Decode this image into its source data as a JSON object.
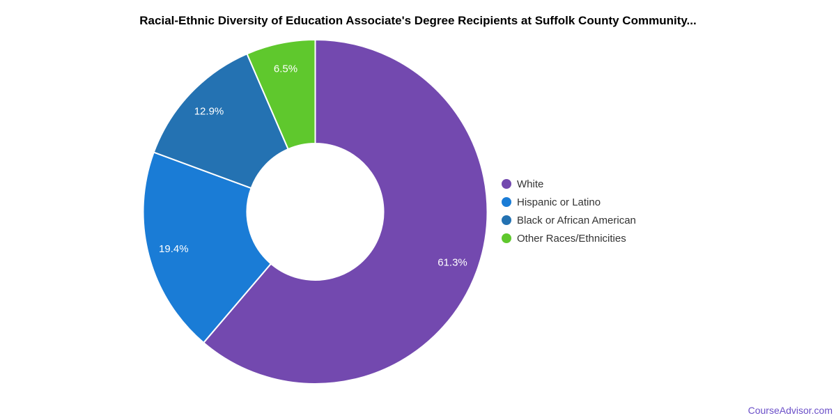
{
  "page": {
    "title": "Racial-Ethnic Diversity of Education Associate's Degree Recipients at Suffolk County Community...",
    "footer_link": "CourseAdvisor.com",
    "footer_link_color": "#6B4FC8",
    "background": "#ffffff"
  },
  "chart_data": {
    "type": "pie",
    "subtype": "donut",
    "title": "Racial-Ethnic Diversity of Education Associate's Degree Recipients at Suffolk County Community...",
    "legend_position": "right",
    "direction": "clockwise",
    "start_angle_deg": 0,
    "slice_label_format": "percent",
    "slice_label_color": "#ffffff",
    "slices": [
      {
        "label": "White",
        "value": 61.3,
        "display": "61.3%",
        "color": "#7349AF"
      },
      {
        "label": "Hispanic or Latino",
        "value": 19.4,
        "display": "19.4%",
        "color": "#1A7CD6"
      },
      {
        "label": "Black or African American",
        "value": 12.9,
        "display": "12.9%",
        "color": "#2472B2"
      },
      {
        "label": "Other Races/Ethnicities",
        "value": 6.5,
        "display": "6.5%",
        "color": "#5FC82D"
      }
    ]
  }
}
